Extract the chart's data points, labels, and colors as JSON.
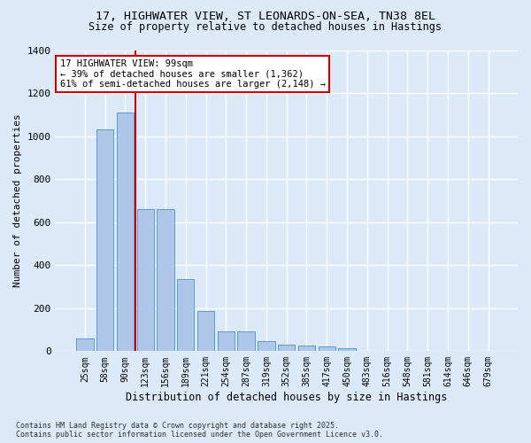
{
  "title_line1": "17, HIGHWATER VIEW, ST LEONARDS-ON-SEA, TN38 8EL",
  "title_line2": "Size of property relative to detached houses in Hastings",
  "xlabel": "Distribution of detached houses by size in Hastings",
  "ylabel": "Number of detached properties",
  "categories": [
    "25sqm",
    "58sqm",
    "90sqm",
    "123sqm",
    "156sqm",
    "189sqm",
    "221sqm",
    "254sqm",
    "287sqm",
    "319sqm",
    "352sqm",
    "385sqm",
    "417sqm",
    "450sqm",
    "483sqm",
    "516sqm",
    "548sqm",
    "581sqm",
    "614sqm",
    "646sqm",
    "679sqm"
  ],
  "values": [
    60,
    1030,
    1110,
    660,
    660,
    335,
    185,
    90,
    90,
    45,
    30,
    25,
    20,
    15,
    0,
    0,
    0,
    0,
    0,
    0,
    0
  ],
  "bar_color": "#aec6e8",
  "bar_edge_color": "#5b9bd5",
  "background_color": "#dce9f8",
  "grid_color": "#ffffff",
  "vline_color": "#cc0000",
  "annotation_text": "17 HIGHWATER VIEW: 99sqm\n← 39% of detached houses are smaller (1,362)\n61% of semi-detached houses are larger (2,148) →",
  "annotation_box_color": "#ffffff",
  "annotation_box_edge": "#cc0000",
  "ylim": [
    0,
    1400
  ],
  "yticks": [
    0,
    200,
    400,
    600,
    800,
    1000,
    1200,
    1400
  ],
  "footer_line1": "Contains HM Land Registry data © Crown copyright and database right 2025.",
  "footer_line2": "Contains public sector information licensed under the Open Government Licence v3.0."
}
